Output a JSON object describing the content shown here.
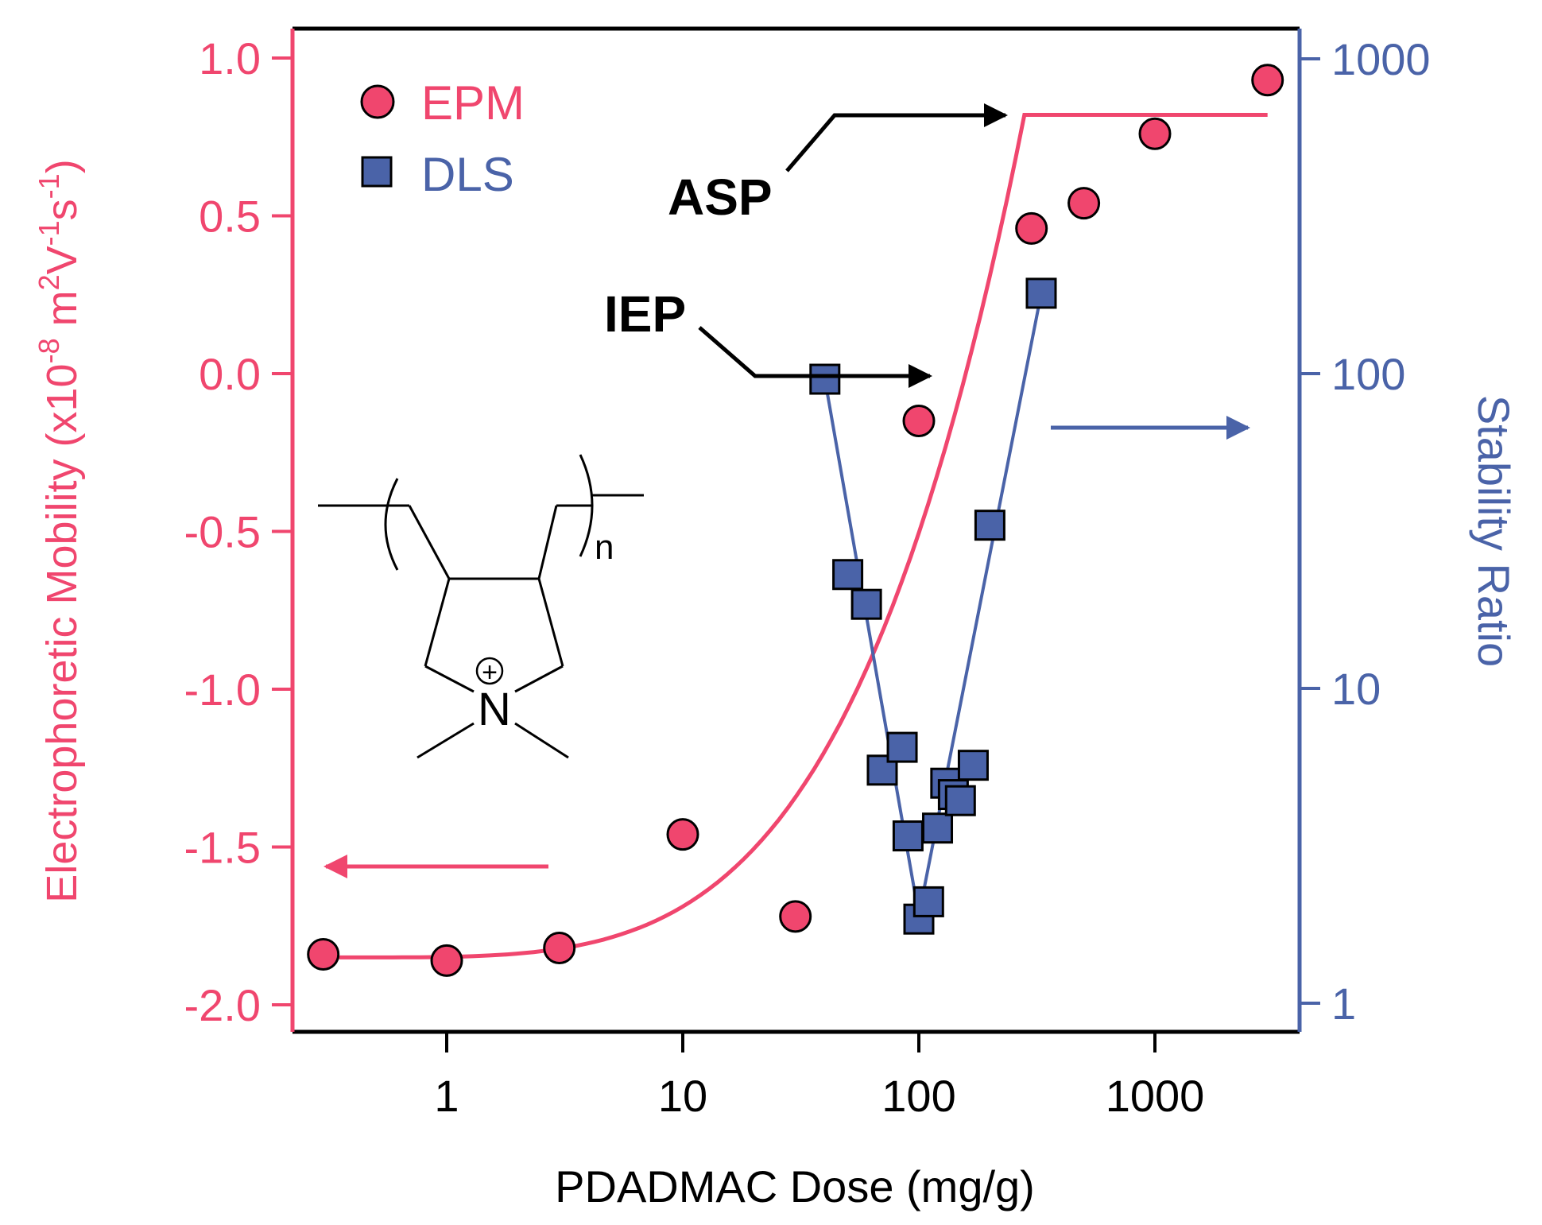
{
  "chart_data": {
    "type": "scatter",
    "xlabel": "PDADMAC Dose (mg/g)",
    "x_scale": "log",
    "xlim": [
      0.25,
      4000
    ],
    "x_ticks": [
      1,
      10,
      100,
      1000
    ],
    "x_tick_labels": [
      "1",
      "10",
      "100",
      "1000"
    ],
    "y_left": {
      "label_parts": {
        "base": "Electrophoretic Mobility (x10",
        "e1": "-8",
        "m": " m",
        "e2": "2",
        "v": "V",
        "e3": "-1",
        "s": "s",
        "e4": "-1",
        "close": ")"
      },
      "ylim": [
        -2.1,
        1.1
      ],
      "ticks": [
        1.0,
        0.5,
        0.0,
        -0.5,
        -1.0,
        -1.5,
        -2.0
      ],
      "tick_labels": [
        "1.0",
        "0.5",
        "0.0",
        "-0.5",
        "-1.0",
        "-1.5",
        "-2.0"
      ],
      "color": "#f0466e"
    },
    "y_right": {
      "label": "Stability Ratio",
      "scale": "log",
      "ylim": [
        0.85,
        1200
      ],
      "ticks": [
        1000,
        100,
        10,
        1
      ],
      "tick_labels": [
        "1000",
        "100",
        "10",
        "1"
      ],
      "color": "#4a63a8"
    },
    "series": [
      {
        "name": "EPM",
        "axis": "left",
        "marker": "circle",
        "color": "#f0466e",
        "x": [
          0.3,
          1,
          3,
          10,
          30,
          100,
          300,
          500,
          1000,
          3000
        ],
        "y": [
          -1.84,
          -1.86,
          -1.82,
          -1.46,
          -1.72,
          -0.15,
          0.46,
          0.54,
          0.76,
          0.93
        ]
      },
      {
        "name": "DLS",
        "axis": "right",
        "marker": "square",
        "color": "#4a63a8",
        "x": [
          40,
          50,
          60,
          70,
          85,
          90,
          100,
          110,
          120,
          130,
          140,
          150,
          170,
          200,
          330
        ],
        "y": [
          96,
          23,
          18.5,
          5.5,
          6.5,
          3.4,
          1.85,
          2.1,
          3.6,
          5,
          4.6,
          4.4,
          5.7,
          33,
          180
        ]
      }
    ],
    "fit_epm": {
      "name": "EPM fit",
      "color": "#f0466e",
      "plateau_low": -1.85,
      "plateau_high": 0.82,
      "x_break": 280,
      "x_end": 3000
    },
    "fit_dls": {
      "name": "DLS fit",
      "color": "#4a63a8",
      "x": [
        40,
        100,
        330
      ],
      "y": [
        96,
        1.9,
        180
      ]
    },
    "legend": {
      "position": "top-left",
      "entries": [
        "EPM",
        "DLS"
      ]
    },
    "annotations": {
      "asp": "ASP",
      "iep": "IEP",
      "structure_n": "n",
      "structure_charge": "+",
      "structure_atom": "N"
    },
    "colors": {
      "axis": "#000000",
      "epm": "#f0466e",
      "dls": "#4a63a8",
      "marker_outline": "#000000"
    }
  }
}
